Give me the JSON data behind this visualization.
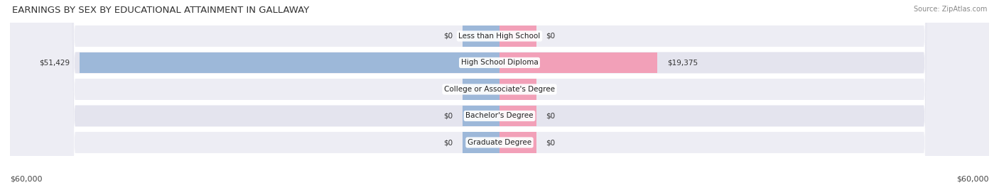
{
  "title": "EARNINGS BY SEX BY EDUCATIONAL ATTAINMENT IN GALLAWAY",
  "source": "Source: ZipAtlas.com",
  "categories": [
    "Less than High School",
    "High School Diploma",
    "College or Associate's Degree",
    "Bachelor's Degree",
    "Graduate Degree"
  ],
  "male_values": [
    0,
    51429,
    0,
    0,
    0
  ],
  "female_values": [
    0,
    19375,
    0,
    0,
    0
  ],
  "max_value": 60000,
  "male_color": "#9db8d9",
  "female_color": "#f2a0b8",
  "male_color_legend": "#6b9fd4",
  "female_color_legend": "#f07090",
  "row_bg_light": "#ededf4",
  "row_bg_dark": "#e4e4ee",
  "xlabel_left": "$60,000",
  "xlabel_right": "$60,000",
  "title_fontsize": 9.5,
  "axis_fontsize": 8,
  "label_fontsize": 7.5,
  "cat_fontsize": 7.5,
  "background_color": "#ffffff",
  "stub_value": 4500
}
